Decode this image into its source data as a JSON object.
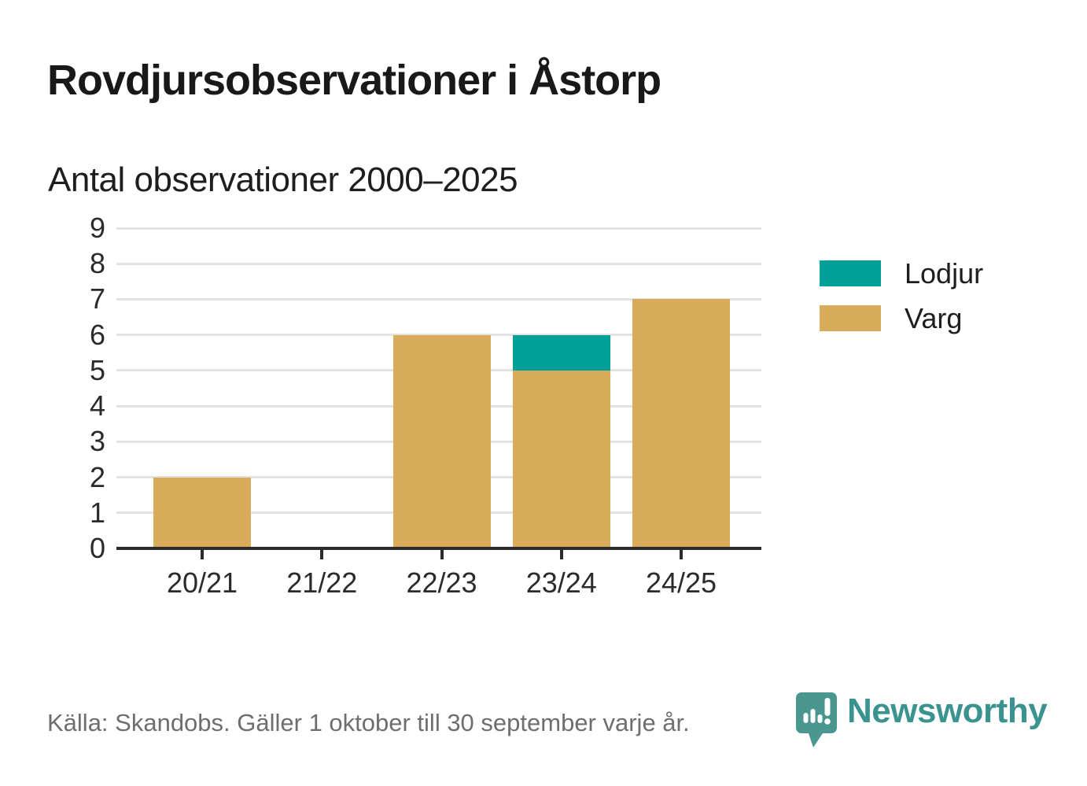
{
  "header": {
    "title": "Rovdjursobservationer i Åstorp",
    "subtitle": "Antal observationer 2000–2025"
  },
  "chart_data": {
    "type": "bar",
    "stacked": true,
    "title": "Rovdjursobservationer i Åstorp",
    "subtitle": "Antal observationer 2000–2025",
    "categories": [
      "20/21",
      "21/22",
      "22/23",
      "23/24",
      "24/25"
    ],
    "series": [
      {
        "name": "Varg",
        "color": "#D9AC5C",
        "values": [
          2,
          0,
          6,
          5,
          7
        ]
      },
      {
        "name": "Lodjur",
        "color": "#00A099",
        "values": [
          0,
          0,
          0,
          1,
          0
        ]
      }
    ],
    "stack_totals": [
      2,
      0,
      6,
      6,
      7
    ],
    "xlabel": "",
    "ylabel": "",
    "ylim": [
      0,
      9
    ],
    "yticks": [
      0,
      1,
      2,
      3,
      4,
      5,
      6,
      7,
      8,
      9
    ],
    "grid": true,
    "legend_position": "right",
    "legend": [
      {
        "label": "Lodjur",
        "color": "#00A099"
      },
      {
        "label": "Varg",
        "color": "#D9AC5C"
      }
    ]
  },
  "footer": {
    "source": "Källa: Skandobs. Gäller 1 oktober till 30 september varje år.",
    "brand": "Newsworthy"
  },
  "colors": {
    "background": "#FFFFFF",
    "title_text": "#191919",
    "axis_text": "#2B2B2B",
    "gridline": "#E3E3E3",
    "axis_line": "#2B2B2B",
    "source_text": "#6E6E6E",
    "brand_teal": "#3A938F",
    "logo_bubble": "#4A9791"
  }
}
